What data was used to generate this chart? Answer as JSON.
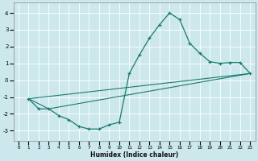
{
  "xlabel": "Humidex (Indice chaleur)",
  "bg_color": "#cce8ec",
  "line_color": "#1a7a6e",
  "grid_color": "#ffffff",
  "xlim": [
    -0.5,
    23.5
  ],
  "ylim": [
    -3.6,
    4.6
  ],
  "yticks": [
    -3,
    -2,
    -1,
    0,
    1,
    2,
    3,
    4
  ],
  "xticks": [
    0,
    1,
    2,
    3,
    4,
    5,
    6,
    7,
    8,
    9,
    10,
    11,
    12,
    13,
    14,
    15,
    16,
    17,
    18,
    19,
    20,
    21,
    22,
    23
  ],
  "line1_x": [
    1,
    2,
    3,
    4,
    5,
    6,
    7,
    8,
    9,
    10,
    11,
    12,
    13,
    14,
    15,
    16,
    17,
    18,
    19,
    20,
    21,
    22,
    23
  ],
  "line1_y": [
    -1.1,
    -1.7,
    -1.7,
    -2.1,
    -2.35,
    -2.75,
    -2.9,
    -2.9,
    -2.65,
    -2.5,
    0.4,
    1.5,
    2.5,
    3.3,
    4.0,
    3.6,
    2.2,
    1.6,
    1.1,
    1.0,
    1.05,
    1.05,
    0.4
  ],
  "line2_x": [
    1,
    23
  ],
  "line2_y": [
    -1.1,
    0.4
  ],
  "line3_x": [
    3,
    23
  ],
  "line3_y": [
    -1.7,
    0.4
  ],
  "line4_x": [
    1,
    3
  ],
  "line4_y": [
    -1.1,
    -1.7
  ]
}
